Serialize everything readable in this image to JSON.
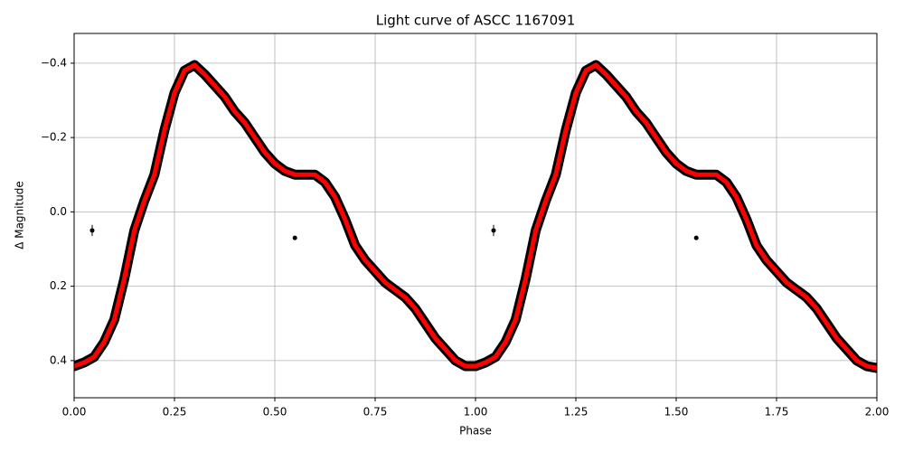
{
  "chart_data": {
    "type": "line",
    "title": "Light curve of ASCC 1167091",
    "x_label": "Phase",
    "y_label": "Δ Magnitude",
    "xlim": [
      0,
      2
    ],
    "ylim": [
      0.5,
      -0.48
    ],
    "grid": true,
    "xticks": [
      {
        "value": 0,
        "label": "0.00"
      },
      {
        "value": 0.25,
        "label": "0.25"
      },
      {
        "value": 0.5,
        "label": "0.50"
      },
      {
        "value": 0.75,
        "label": "0.75"
      },
      {
        "value": 1,
        "label": "1.00"
      },
      {
        "value": 1.25,
        "label": "1.25"
      },
      {
        "value": 1.5,
        "label": "1.50"
      },
      {
        "value": 1.75,
        "label": "1.75"
      },
      {
        "value": 2,
        "label": "2.00"
      }
    ],
    "yticks": [
      {
        "value": -0.4,
        "label": "−0.4"
      },
      {
        "value": -0.2,
        "label": "−0.2"
      },
      {
        "value": 0,
        "label": "0.0"
      },
      0.2,
      0.4
    ],
    "series": [
      {
        "color": "#000000",
        "style": "band",
        "x": [
          0,
          0.025,
          0.05,
          0.075,
          0.1,
          0.125,
          0.15,
          0.175,
          0.2,
          0.225,
          0.25,
          0.275,
          0.3,
          0.325,
          0.35,
          0.375,
          0.4,
          0.425,
          0.45,
          0.475,
          0.5,
          0.525,
          0.55,
          0.575,
          0.6,
          0.625,
          0.65,
          0.675,
          0.7,
          0.725,
          0.75,
          0.775,
          0.8,
          0.825,
          0.85,
          0.875,
          0.9,
          0.925,
          0.95,
          0.975,
          1,
          1.025,
          1.05,
          1.075,
          1.1,
          1.125,
          1.15,
          1.175,
          1.2,
          1.225,
          1.25,
          1.275,
          1.3,
          1.325,
          1.35,
          1.375,
          1.4,
          1.425,
          1.45,
          1.475,
          1.5,
          1.525,
          1.55,
          1.575,
          1.6,
          1.625,
          1.65,
          1.675,
          1.7,
          1.725,
          1.75,
          1.775,
          1.8,
          1.825,
          1.85,
          1.875,
          1.9,
          1.925,
          1.95,
          1.975,
          2
        ],
        "values": [
          0.415,
          0.405,
          0.39,
          0.35,
          0.29,
          0.18,
          0.05,
          -0.03,
          -0.1,
          -0.22,
          -0.32,
          -0.38,
          -0.395,
          -0.37,
          -0.34,
          -0.31,
          -0.27,
          -0.24,
          -0.2,
          -0.16,
          -0.13,
          -0.11,
          -0.1,
          -0.1,
          -0.1,
          -0.08,
          -0.04,
          0.02,
          0.09,
          0.13,
          0.16,
          0.19,
          0.21,
          0.23,
          0.26,
          0.3,
          0.34,
          0.37,
          0.4,
          0.415,
          0.415,
          0.405,
          0.39,
          0.35,
          0.29,
          0.18,
          0.05,
          -0.03,
          -0.1,
          -0.22,
          -0.32,
          -0.38,
          -0.395,
          -0.37,
          -0.34,
          -0.31,
          -0.27,
          -0.24,
          -0.2,
          -0.16,
          -0.13,
          -0.11,
          -0.1,
          -0.1,
          -0.1,
          -0.08,
          -0.04,
          0.02,
          0.09,
          0.13,
          0.16,
          0.19,
          0.21,
          0.23,
          0.26,
          0.3,
          0.34,
          0.37,
          0.4,
          0.415,
          0.42
        ]
      },
      {
        "color": "#ff0000",
        "style": "line",
        "x": [
          0,
          0.025,
          0.05,
          0.075,
          0.1,
          0.125,
          0.15,
          0.175,
          0.2,
          0.225,
          0.25,
          0.275,
          0.3,
          0.325,
          0.35,
          0.375,
          0.4,
          0.425,
          0.45,
          0.475,
          0.5,
          0.525,
          0.55,
          0.575,
          0.6,
          0.625,
          0.65,
          0.675,
          0.7,
          0.725,
          0.75,
          0.775,
          0.8,
          0.825,
          0.85,
          0.875,
          0.9,
          0.925,
          0.95,
          0.975,
          1,
          1.025,
          1.05,
          1.075,
          1.1,
          1.125,
          1.15,
          1.175,
          1.2,
          1.225,
          1.25,
          1.275,
          1.3,
          1.325,
          1.35,
          1.375,
          1.4,
          1.425,
          1.45,
          1.475,
          1.5,
          1.525,
          1.55,
          1.575,
          1.6,
          1.625,
          1.65,
          1.675,
          1.7,
          1.725,
          1.75,
          1.775,
          1.8,
          1.825,
          1.85,
          1.875,
          1.9,
          1.925,
          1.95,
          1.975,
          2
        ],
        "values": [
          0.415,
          0.405,
          0.39,
          0.35,
          0.29,
          0.18,
          0.05,
          -0.03,
          -0.1,
          -0.22,
          -0.32,
          -0.38,
          -0.395,
          -0.37,
          -0.34,
          -0.31,
          -0.27,
          -0.24,
          -0.2,
          -0.16,
          -0.13,
          -0.11,
          -0.1,
          -0.1,
          -0.1,
          -0.08,
          -0.04,
          0.02,
          0.09,
          0.13,
          0.16,
          0.19,
          0.21,
          0.23,
          0.26,
          0.3,
          0.34,
          0.37,
          0.4,
          0.415,
          0.415,
          0.405,
          0.39,
          0.35,
          0.29,
          0.18,
          0.05,
          -0.03,
          -0.1,
          -0.22,
          -0.32,
          -0.38,
          -0.395,
          -0.37,
          -0.34,
          -0.31,
          -0.27,
          -0.24,
          -0.2,
          -0.16,
          -0.13,
          -0.11,
          -0.1,
          -0.1,
          -0.1,
          -0.08,
          -0.04,
          0.02,
          0.09,
          0.13,
          0.16,
          0.19,
          0.21,
          0.23,
          0.26,
          0.3,
          0.34,
          0.37,
          0.4,
          0.415,
          0.42
        ]
      },
      {
        "color": "#000000",
        "style": "points",
        "x": [
          0.045,
          0.55,
          1.045,
          1.55
        ],
        "values": [
          0.05,
          0.07,
          0.05,
          0.07
        ],
        "errors": [
          0.015,
          0.005,
          0.015,
          0.005
        ]
      }
    ]
  }
}
